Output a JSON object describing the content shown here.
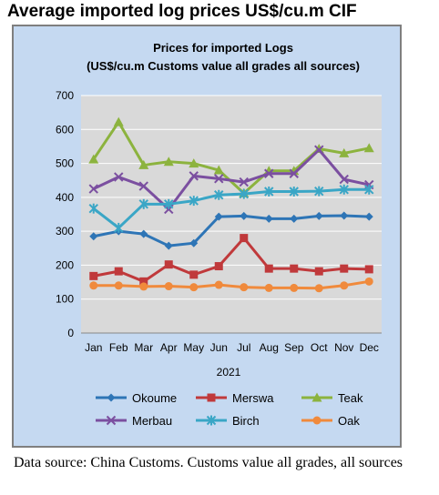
{
  "heading": "Average imported log prices US$/cu.m CIF",
  "source_note": "Data source: China Customs. Customs value all grades, all sources",
  "colors": {
    "frame_background": "#c5d9f1",
    "plot_background": "#d9d9d9",
    "gridline": "#ffffff"
  },
  "chart_data": {
    "type": "line",
    "title": "Prices for imported Logs",
    "subtitle": "(US$/cu.m Customs value all grades all sources)",
    "xlabel": "2021",
    "ylabel": "",
    "categories": [
      "Jan",
      "Feb",
      "Mar",
      "Apr",
      "May",
      "Jun",
      "Jul",
      "Aug",
      "Sep",
      "Oct",
      "Nov",
      "Dec"
    ],
    "yticks": [
      0,
      100,
      200,
      300,
      400,
      500,
      600,
      700
    ],
    "ylim": [
      0,
      700
    ],
    "grid": true,
    "legend_position": "bottom",
    "series": [
      {
        "name": "Okoume",
        "color": "#2e75b6",
        "marker": "diamond",
        "values": [
          285,
          300,
          292,
          257,
          265,
          343,
          345,
          337,
          337,
          345,
          346,
          343
        ]
      },
      {
        "name": "Merswa",
        "color": "#c0393b",
        "marker": "square",
        "values": [
          168,
          182,
          152,
          202,
          172,
          197,
          280,
          190,
          190,
          182,
          190,
          188
        ]
      },
      {
        "name": "Teak",
        "color": "#8cb33e",
        "marker": "triangle",
        "values": [
          512,
          622,
          495,
          505,
          500,
          480,
          412,
          478,
          478,
          543,
          530,
          545
        ]
      },
      {
        "name": "Merbau",
        "color": "#7b4fa0",
        "marker": "x",
        "values": [
          425,
          460,
          433,
          365,
          463,
          455,
          445,
          470,
          470,
          540,
          453,
          437
        ]
      },
      {
        "name": "Birch",
        "color": "#3aa6c6",
        "marker": "star",
        "values": [
          367,
          310,
          380,
          380,
          390,
          407,
          410,
          417,
          417,
          418,
          423,
          423
        ]
      },
      {
        "name": "Oak",
        "color": "#f08a3c",
        "marker": "circle",
        "values": [
          140,
          140,
          137,
          138,
          135,
          142,
          135,
          133,
          133,
          132,
          140,
          152
        ]
      }
    ]
  }
}
